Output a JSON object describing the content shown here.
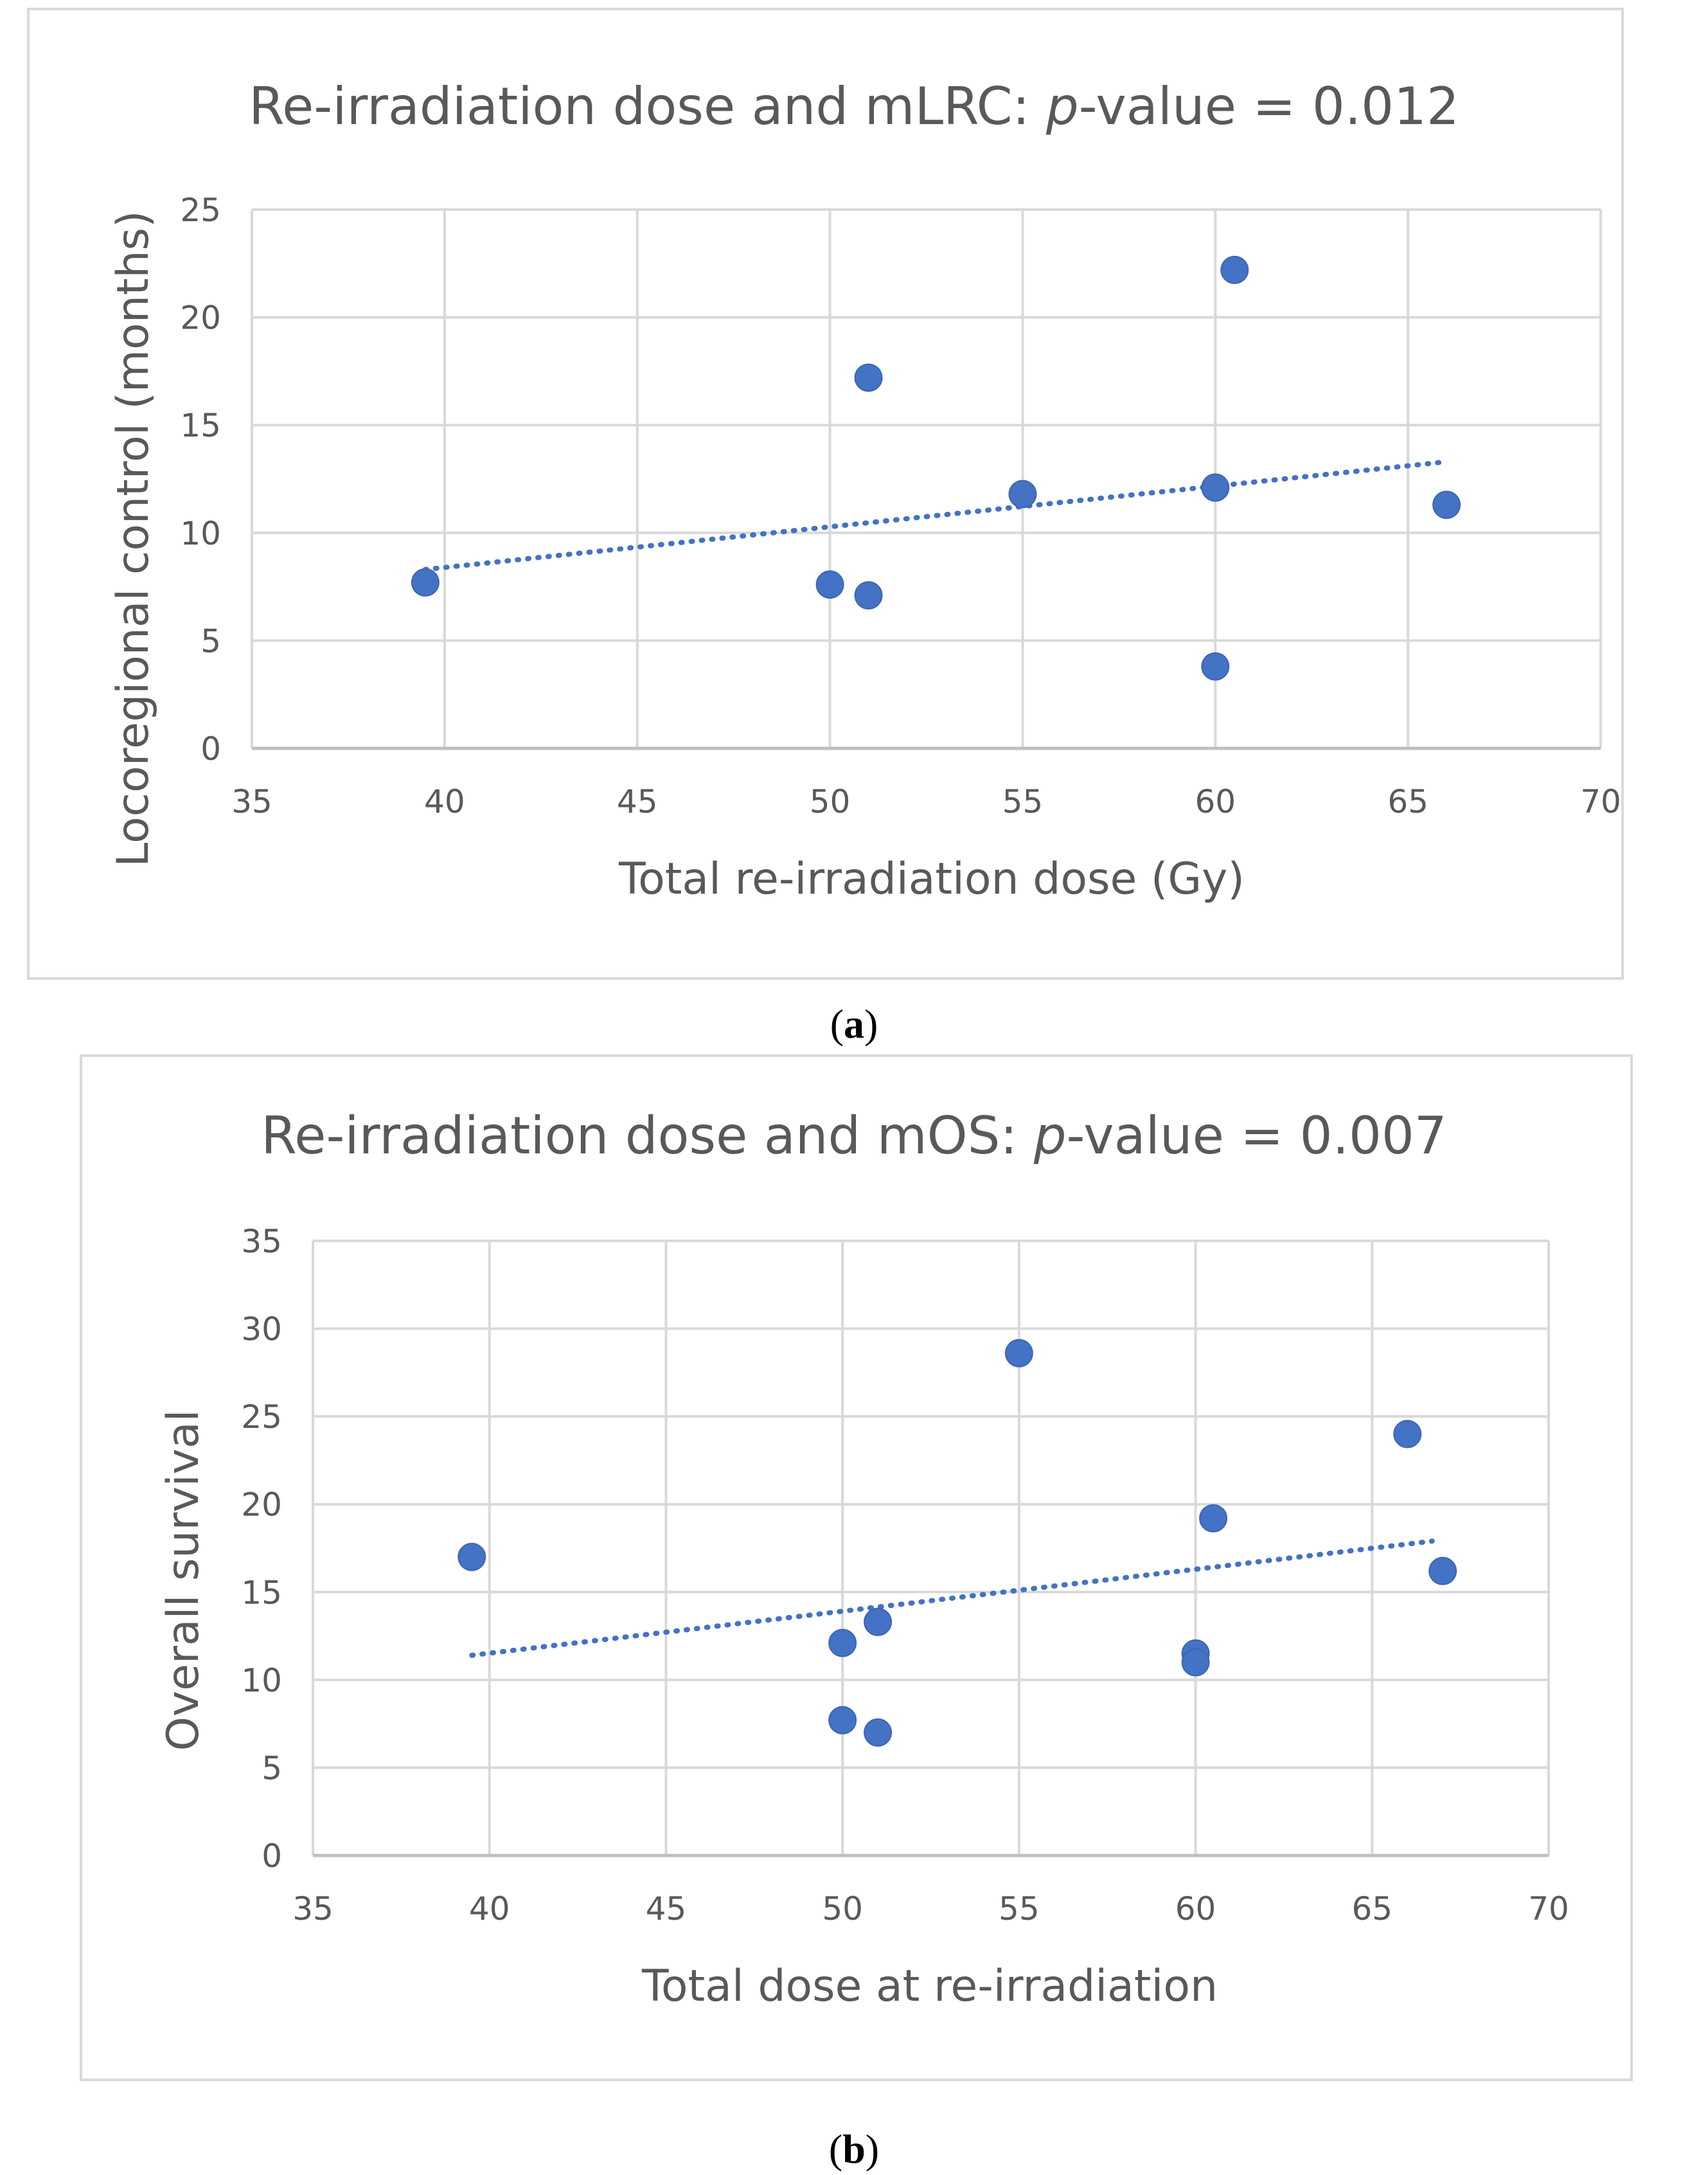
{
  "chart_data": [
    {
      "type": "scatter",
      "title": "Re-irradiation dose and mLRC: p-value = 0.012",
      "title_parts": {
        "prefix": "Re-irradiation dose and mLRC: ",
        "italic": "p",
        "suffix": "-value = 0.012"
      },
      "xlabel": "Total re-irradiation dose (Gy)",
      "ylabel": "Locoregional control (months)",
      "xlim": [
        35,
        70
      ],
      "ylim": [
        0,
        25
      ],
      "x_ticks": [
        35,
        40,
        45,
        50,
        55,
        60,
        65,
        70
      ],
      "y_ticks": [
        0,
        5,
        10,
        15,
        20,
        25
      ],
      "grid": true,
      "marker_color": "#4472c4",
      "points": [
        {
          "x": 39.5,
          "y": 7.7
        },
        {
          "x": 50,
          "y": 7.6
        },
        {
          "x": 51,
          "y": 17.2
        },
        {
          "x": 51,
          "y": 7.1
        },
        {
          "x": 55,
          "y": 11.8
        },
        {
          "x": 60,
          "y": 12.1
        },
        {
          "x": 60,
          "y": 3.8
        },
        {
          "x": 60.5,
          "y": 22.2
        },
        {
          "x": 66,
          "y": 11.3
        }
      ],
      "trendline": {
        "type": "linear",
        "style": "dotted",
        "x_start": 39.5,
        "y_start": 8.3,
        "x_end": 66,
        "y_end": 13.3
      },
      "caption": "a"
    },
    {
      "type": "scatter",
      "title": "Re-irradiation dose and mOS: p-value = 0.007",
      "title_parts": {
        "prefix": "Re-irradiation dose and mOS: ",
        "italic": "p",
        "suffix": "-value = 0.007"
      },
      "xlabel": "Total dose at re-irradiation",
      "ylabel": "Overall survival",
      "xlim": [
        35,
        70
      ],
      "ylim": [
        0,
        35
      ],
      "x_ticks": [
        35,
        40,
        45,
        50,
        55,
        60,
        65,
        70
      ],
      "y_ticks": [
        0,
        5,
        10,
        15,
        20,
        25,
        30,
        35
      ],
      "grid": true,
      "marker_color": "#4472c4",
      "points": [
        {
          "x": 39.5,
          "y": 17.0
        },
        {
          "x": 50,
          "y": 12.1
        },
        {
          "x": 50,
          "y": 7.7
        },
        {
          "x": 51,
          "y": 13.3
        },
        {
          "x": 51,
          "y": 7.0
        },
        {
          "x": 55,
          "y": 28.6
        },
        {
          "x": 60,
          "y": 11.5
        },
        {
          "x": 60,
          "y": 11.0
        },
        {
          "x": 60.5,
          "y": 19.2
        },
        {
          "x": 66,
          "y": 24.0
        },
        {
          "x": 67,
          "y": 16.2
        }
      ],
      "trendline": {
        "type": "linear",
        "style": "dotted",
        "x_start": 39.5,
        "y_start": 11.4,
        "x_end": 66.7,
        "y_end": 17.9
      },
      "caption": "b"
    }
  ]
}
